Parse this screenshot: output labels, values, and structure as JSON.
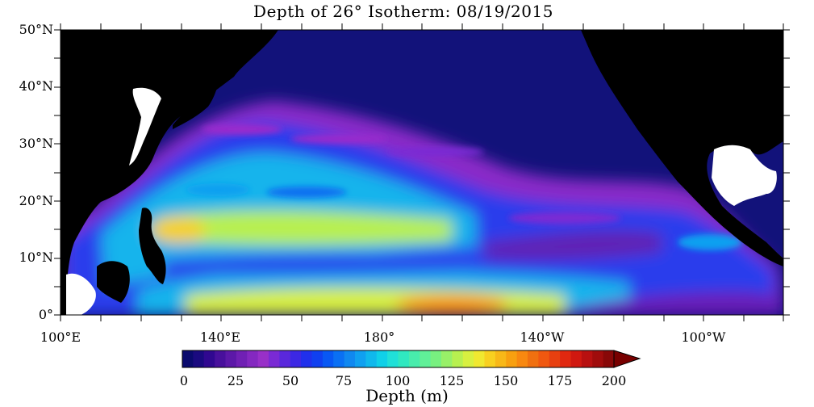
{
  "title": "Depth of 26° Isotherm: 08/19/2015",
  "y_axis": {
    "labels": [
      "50°N",
      "40°N",
      "30°N",
      "20°N",
      "10°N",
      "0°"
    ]
  },
  "x_axis": {
    "labels": [
      "100°E",
      "140°E",
      "180°",
      "140°W",
      "100°W"
    ]
  },
  "colorbar": {
    "title": "Depth (m)",
    "tick_labels": [
      "0",
      "25",
      "50",
      "75",
      "100",
      "125",
      "150",
      "175",
      "200"
    ],
    "min": 0,
    "max": 200,
    "step": 5,
    "colors": [
      "#0a0a6e",
      "#1a0a80",
      "#300890",
      "#48109c",
      "#5c18a8",
      "#7020b4",
      "#8428c0",
      "#9830c8",
      "#7a2ad4",
      "#5a28dc",
      "#3c28e4",
      "#2030ec",
      "#1040f0",
      "#0858f4",
      "#0a70f4",
      "#1088f0",
      "#10a0f0",
      "#10b8ec",
      "#10d0e8",
      "#20e0d8",
      "#30e8c0",
      "#48ecac",
      "#60f098",
      "#78f080",
      "#98f068",
      "#b8f050",
      "#d8f040",
      "#f0e830",
      "#f8d020",
      "#f8b818",
      "#f8a010",
      "#f88810",
      "#f07010",
      "#f05810",
      "#e84010",
      "#e02810",
      "#d01810",
      "#b81010",
      "#a00c0c",
      "#880808"
    ],
    "extend_color": "#780000"
  },
  "map_colors": {
    "land": "#000000",
    "missing": "#ffffff",
    "deep_blue": "#12127a"
  }
}
